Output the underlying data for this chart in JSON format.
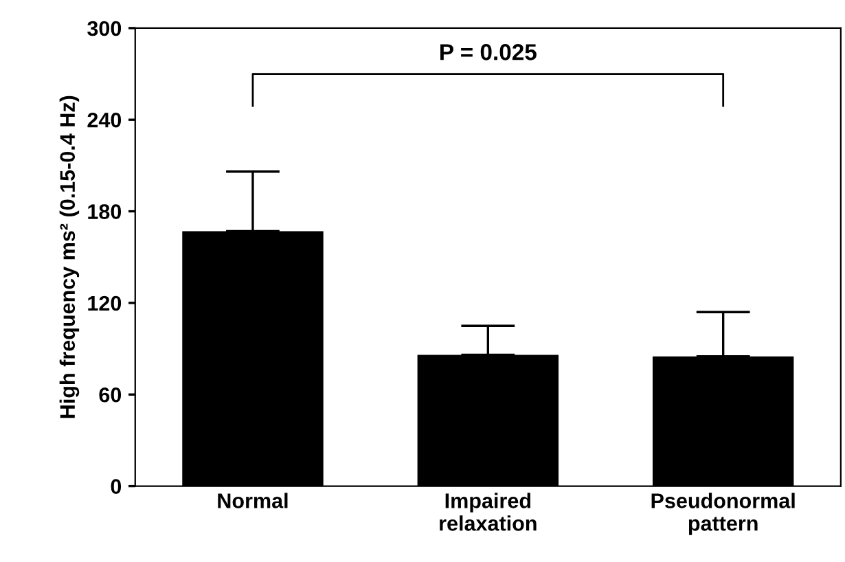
{
  "chart_data": {
    "type": "bar",
    "categories": [
      "Normal",
      "Impaired\nrelaxation",
      "Pseudonormal\npattern"
    ],
    "values": [
      167,
      86,
      85
    ],
    "errors": [
      [
        167,
        206
      ],
      [
        86,
        105
      ],
      [
        85,
        114
      ]
    ],
    "color": "#000000",
    "ylabel": "High frequency ms² (0.15-0.4 Hz)",
    "ylim": [
      0,
      300
    ],
    "yticks": [
      0,
      60,
      120,
      180,
      240,
      300
    ],
    "annotations": [
      "P = 0.025"
    ],
    "grid": false,
    "legend": false
  }
}
